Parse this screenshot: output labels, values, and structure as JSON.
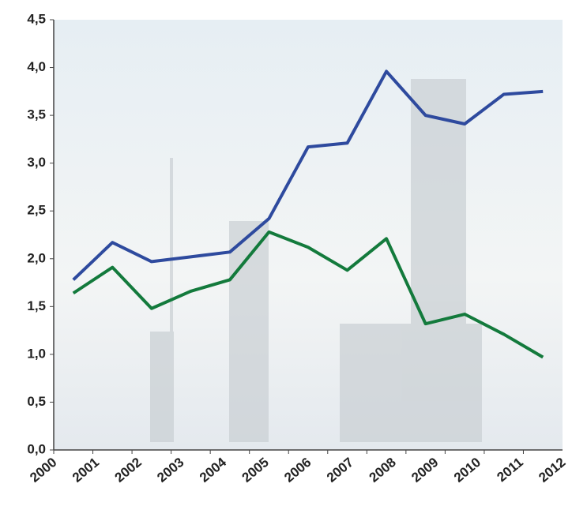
{
  "chart_data": {
    "type": "line",
    "categories": [
      "2000",
      "2001",
      "2002",
      "2003",
      "2004",
      "2005",
      "2006",
      "2007",
      "2008",
      "2009",
      "2010",
      "2011",
      "2012"
    ],
    "series": [
      {
        "color": "#2e4a9e",
        "values": [
          1.78,
          2.17,
          1.97,
          2.02,
          2.07,
          2.42,
          3.17,
          3.21,
          3.96,
          3.5,
          3.41,
          3.72,
          3.75
        ]
      },
      {
        "color": "#137a3c",
        "values": [
          1.64,
          1.91,
          1.48,
          1.66,
          1.78,
          2.28,
          2.12,
          1.88,
          2.21,
          1.32,
          1.42,
          1.21,
          0.97
        ]
      }
    ],
    "ylim": [
      0,
      4.5
    ],
    "yticks": [
      {
        "value": 0,
        "label": "0,0"
      },
      {
        "value": 0.5,
        "label": "0,5"
      },
      {
        "value": 1,
        "label": "1,0"
      },
      {
        "value": 1.5,
        "label": "1,5"
      },
      {
        "value": 2,
        "label": "2,0"
      },
      {
        "value": 2.5,
        "label": "2,5"
      },
      {
        "value": 3,
        "label": "3,0"
      },
      {
        "value": 3.5,
        "label": "3,5"
      },
      {
        "value": 4,
        "label": "4,0"
      },
      {
        "value": 4.5,
        "label": "4,5"
      }
    ],
    "grid": false
  }
}
